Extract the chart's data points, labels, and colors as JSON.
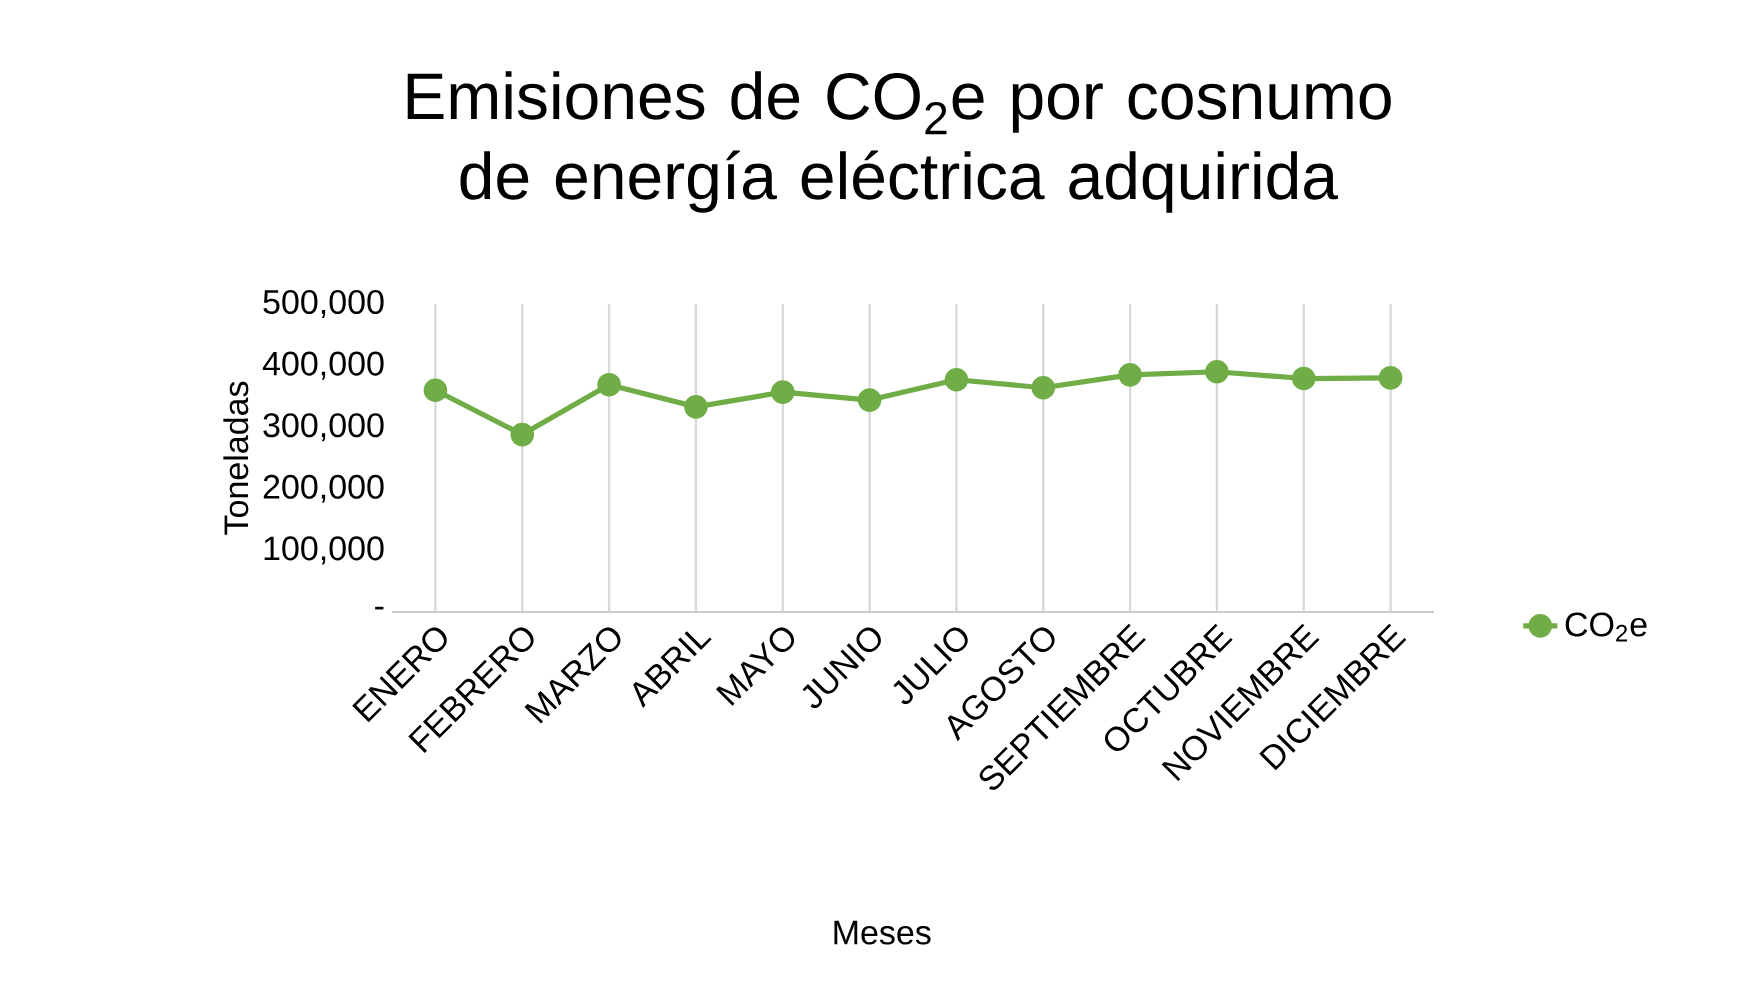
{
  "chart_data": {
    "type": "line",
    "title": "Emisiones de CO$_{2}$e por cosnumo de energía eléctrica adquirida",
    "xlabel": "Meses",
    "ylabel": "Toneladas",
    "categories": [
      "ENERO",
      "FEBRERO",
      "MARZO",
      "ABRIL",
      "MAYO",
      "JUNIO",
      "JULIO",
      "AGOSTO",
      "SEPTIEMBRE",
      "OCTUBRE",
      "NOVIEMBRE",
      "DICIEMBRE"
    ],
    "series": [
      {
        "name": "CO$_{2}$e",
        "color": "#70ad47",
        "values": [
          360000,
          288000,
          369000,
          333000,
          357000,
          344000,
          377000,
          364000,
          385000,
          390000,
          379000,
          380000
        ]
      }
    ],
    "ylim": [
      0,
      500000
    ],
    "yticks": [
      {
        "value": 0,
        "label": "-"
      },
      {
        "value": 100000,
        "label": "100,000"
      },
      {
        "value": 200000,
        "label": "200,000"
      },
      {
        "value": 300000,
        "label": "300,000"
      },
      {
        "value": 400000,
        "label": "400,000"
      },
      {
        "value": 500000,
        "label": "500,000"
      }
    ],
    "grid": "x",
    "legend": "right",
    "marker": "circle",
    "line_style": "solid"
  }
}
